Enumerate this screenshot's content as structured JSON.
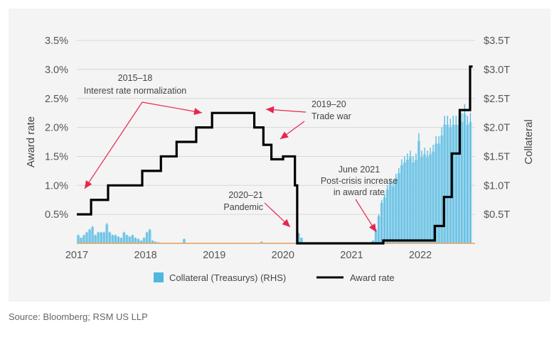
{
  "chart_data": {
    "type": "bar+line",
    "x_ticks": [
      "2017",
      "2018",
      "2019",
      "2020",
      "2021",
      "2022"
    ],
    "y_left": {
      "label": "Award rate",
      "ticks": [
        "0.5%",
        "1.0%",
        "1.5%",
        "2.0%",
        "2.5%",
        "3.0%",
        "3.5%"
      ],
      "range": [
        0,
        3.5
      ]
    },
    "y_right": {
      "label": "Collateral",
      "ticks": [
        "$0.5T",
        "$1.0T",
        "$1.5T",
        "$2.0T",
        "$2.5T",
        "$3.0T",
        "$3.5T"
      ],
      "range": [
        0,
        3.5
      ]
    },
    "grid": true,
    "legend_position": "bottom",
    "series": [
      {
        "name": "Collateral (Treasurys) (RHS)",
        "type": "bar",
        "color": "#4fb8e0",
        "unit": "trillion USD",
        "frequency": "semi-monthly",
        "start": "2017-01",
        "values": [
          0.15,
          0.1,
          0.15,
          0.2,
          0.25,
          0.3,
          0.15,
          0.2,
          0.2,
          0.2,
          0.35,
          0.2,
          0.15,
          0.15,
          0.12,
          0.1,
          0.2,
          0.15,
          0.12,
          0.15,
          0.1,
          0.08,
          0.05,
          0.1,
          0.2,
          0.25,
          0.05,
          0.03,
          0.02,
          0.01,
          0.01,
          0.01,
          0.01,
          0.01,
          0.01,
          0.01,
          0.01,
          0.08,
          0.01,
          0.01,
          0.01,
          0.01,
          0.01,
          0.01,
          0.01,
          0.01,
          0.01,
          0.01,
          0.01,
          0.01,
          0.01,
          0.01,
          0.01,
          0.01,
          0.01,
          0.01,
          0.01,
          0.01,
          0.01,
          0.01,
          0.01,
          0.01,
          0.01,
          0.01,
          0.03,
          0.01,
          0.01,
          0.01,
          0.01,
          0.01,
          0.01,
          0.01,
          0.01,
          0.01,
          0.01,
          0.01,
          0.01,
          0.18,
          0.1,
          0,
          0,
          0,
          0,
          0,
          0,
          0,
          0,
          0,
          0,
          0,
          0,
          0,
          0,
          0,
          0,
          0,
          0,
          0,
          0,
          0,
          0,
          0,
          0.02,
          0.05,
          0.25,
          0.5,
          0.75,
          0.85,
          1.0,
          1.1,
          1.05,
          1.2,
          1.3,
          1.45,
          1.5,
          1.55,
          1.6,
          1.5,
          1.55,
          1.9,
          1.6,
          1.65,
          1.6,
          1.65,
          1.7,
          1.85,
          1.85,
          2.0,
          2.2,
          2.2,
          2.15,
          2.2,
          2.2,
          2.2,
          2.25,
          2.4,
          2.2,
          2.25
        ]
      },
      {
        "name": "Award rate",
        "type": "step-line",
        "color": "#000000",
        "unit": "percent",
        "points": [
          [
            "2017-01-01",
            0.5
          ],
          [
            "2017-03-16",
            0.75
          ],
          [
            "2017-06-15",
            1.0
          ],
          [
            "2017-12-14",
            1.25
          ],
          [
            "2018-03-22",
            1.5
          ],
          [
            "2018-06-14",
            1.75
          ],
          [
            "2018-09-27",
            2.0
          ],
          [
            "2018-12-20",
            2.25
          ],
          [
            "2019-08-01",
            2.0
          ],
          [
            "2019-09-19",
            1.7
          ],
          [
            "2019-10-31",
            1.45
          ],
          [
            "2020-01-02",
            1.5
          ],
          [
            "2020-03-04",
            1.0
          ],
          [
            "2020-03-16",
            0.0
          ],
          [
            "2021-06-17",
            0.05
          ],
          [
            "2022-03-17",
            0.3
          ],
          [
            "2022-05-05",
            0.8
          ],
          [
            "2022-06-16",
            1.55
          ],
          [
            "2022-07-28",
            2.3
          ],
          [
            "2022-09-22",
            3.05
          ],
          [
            "2022-10-05",
            3.05
          ]
        ]
      }
    ],
    "annotations": [
      {
        "lines": [
          "2015–18",
          "Interest rate normalization"
        ]
      },
      {
        "lines": [
          "2019–20",
          "Trade war"
        ]
      },
      {
        "lines": [
          "2020–21",
          "Pandemic"
        ]
      },
      {
        "lines": [
          "June 2021",
          "Post-crisis increase",
          "in award rate"
        ]
      }
    ],
    "annotation_color": "#e6264d",
    "source": "Source: Bloomberg; RSM US LLP"
  }
}
